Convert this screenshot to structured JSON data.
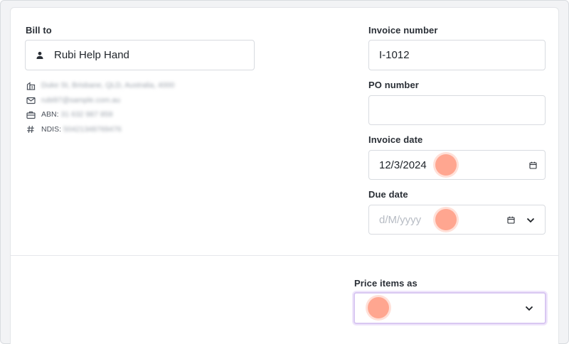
{
  "bill_to": {
    "label": "Bill to",
    "client_name": "Rubi Help Hand",
    "address": "Duke St, Brisbane, QLD, Australia, 4000",
    "email": "rubi97@sample.com.au",
    "abn_label": "ABN:",
    "abn_value": "31 632 987 859",
    "ndis_label": "NDIS:",
    "ndis_value": "50421348769476"
  },
  "invoice_number": {
    "label": "Invoice number",
    "value": "I-1012"
  },
  "po_number": {
    "label": "PO number",
    "value": ""
  },
  "invoice_date": {
    "label": "Invoice date",
    "value": "12/3/2024"
  },
  "due_date": {
    "label": "Due date",
    "placeholder": "d/M/yyyy"
  },
  "price_items_as": {
    "label": "Price items as",
    "value": ""
  },
  "icons": {
    "person": "person-icon",
    "building": "building-icon",
    "mail": "mail-icon",
    "briefcase": "briefcase-icon",
    "hash": "hash-icon",
    "calendar": "calendar-icon",
    "chevron": "chevron-down-icon"
  },
  "colors": {
    "click_marker": "#ff9d84",
    "focus_border": "#d9c8f2"
  }
}
